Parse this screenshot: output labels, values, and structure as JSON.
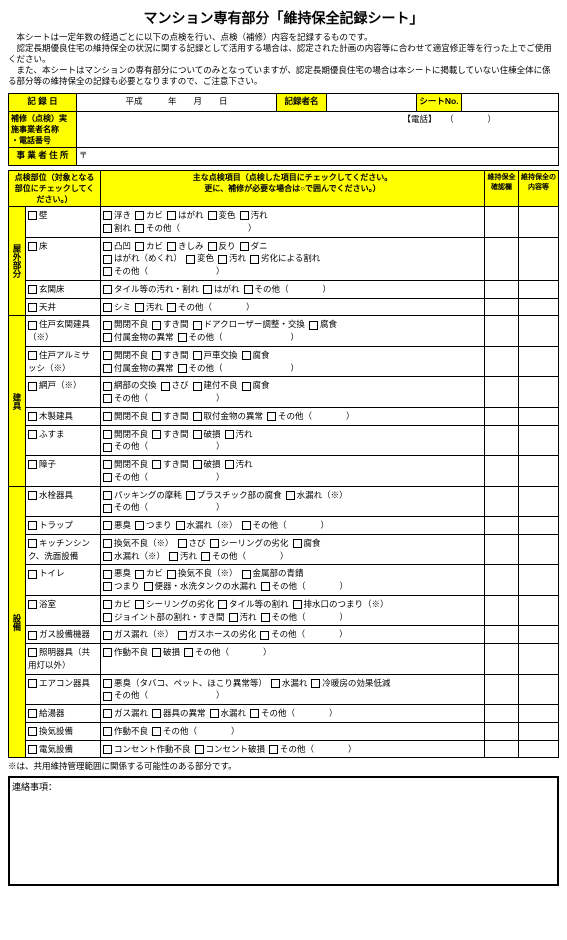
{
  "title": "マンション専有部分「維持保全記録シート」",
  "intro": [
    "　本シートは一定年数の経過ごとに以下の点検を行い、点検（補修）内容を記録するものです。",
    "　認定長期優良住宅の維持保全の状況に関する記録として活用する場合は、認定された計画の内容等に合わせて適宜修正等を行った上でご使用ください。",
    "　また、本シートはマンションの専有部分についてのみとなっていますが、認定長期優良住宅の場合は本シートに掲載していない住棟全体に係る部分等の維持保全の記録も必要となりますので、ご注意下さい。"
  ],
  "header": {
    "record_date": "記 録 日",
    "heisei": "平成",
    "year": "年",
    "month": "月",
    "day": "日",
    "recorder": "記録者名",
    "sheet_no": "シートNo.",
    "contractor": "補修（点検）実施事業者名称\n・電話番号",
    "tel": "【電話】",
    "address": "事 業 者 住 所",
    "postal": "〒"
  },
  "col_headers": {
    "area": "点検部位（対象となる部位にチェックしてください。）",
    "main": "主な点検項目（点検した項目にチェックしてください。\n更に、補修が必要な場合は○で囲んでください。）",
    "maint": "維持保全確認欄",
    "content": "維持保全の内容等"
  },
  "sections": [
    {
      "label": "屋外部分",
      "rows": [
        {
          "area": "壁",
          "lines": [
            [
              "浮き",
              "カビ",
              "はがれ",
              "変色",
              "汚れ"
            ],
            [
              "割れ",
              "その他（　　　　　　　　）"
            ]
          ]
        },
        {
          "area": "床",
          "lines": [
            [
              "凸凹",
              "カビ",
              "きしみ",
              "反り",
              "ダニ"
            ],
            [
              "はがれ（めくれ）",
              "変色",
              "汚れ",
              "劣化による割れ"
            ],
            [
              "その他（　　　　　　　　）"
            ]
          ]
        },
        {
          "area": "玄関床",
          "lines": [
            [
              "タイル等の汚れ・割れ",
              "はがれ",
              "その他（　　　　）"
            ]
          ]
        },
        {
          "area": "天井",
          "lines": [
            [
              "シミ",
              "汚れ",
              "その他（　　　　）"
            ]
          ]
        }
      ]
    },
    {
      "label": "建具",
      "rows": [
        {
          "area": "住戸玄関建具（※）",
          "lines": [
            [
              "開閉不良",
              "すき間",
              "ドアクローザー調整・交換",
              "腐食"
            ],
            [
              "付属金物の異常",
              "その他（　　　　　　　　）"
            ]
          ]
        },
        {
          "area": "住戸アルミサッシ（※）",
          "lines": [
            [
              "開閉不良",
              "すき間",
              "戸車交換",
              "腐食"
            ],
            [
              "付属金物の異常",
              "その他（　　　　　　　　）"
            ]
          ]
        },
        {
          "area": "網戸（※）",
          "lines": [
            [
              "網部の交換",
              "さび",
              "建付不良",
              "腐食"
            ],
            [
              "その他（　　　　　　　　）"
            ]
          ]
        },
        {
          "area": "木製建具",
          "lines": [
            [
              "開閉不良",
              "すき間",
              "取付金物の異常",
              "その他（　　　　）"
            ]
          ]
        },
        {
          "area": "ふすま",
          "lines": [
            [
              "開閉不良",
              "すき間",
              "破損",
              "汚れ"
            ],
            [
              "その他（　　　　　　　　）"
            ]
          ]
        },
        {
          "area": "障子",
          "lines": [
            [
              "開閉不良",
              "すき間",
              "破損",
              "汚れ"
            ],
            [
              "その他（　　　　　　　　）"
            ]
          ]
        }
      ]
    },
    {
      "label": "設備",
      "rows": [
        {
          "area": "水栓器具",
          "lines": [
            [
              "パッキングの摩耗",
              "プラスチック部の腐食",
              "水漏れ（※）"
            ],
            [
              "その他（　　　　　　　　）"
            ]
          ]
        },
        {
          "area": "トラップ",
          "lines": [
            [
              "悪臭",
              "つまり",
              "水漏れ（※）",
              "その他（　　　　）"
            ]
          ]
        },
        {
          "area": "キッチンシンク、洗面設備",
          "lines": [
            [
              "換気不良（※）",
              "さび",
              "シーリングの劣化",
              "腐食"
            ],
            [
              "水漏れ（※）",
              "汚れ",
              "その他（　　　　）"
            ]
          ]
        },
        {
          "area": "トイレ",
          "lines": [
            [
              "悪臭",
              "カビ",
              "換気不良（※）",
              "金属部の青錆"
            ],
            [
              "つまり",
              "便器・水洗タンクの水漏れ",
              "その他（　　　　）"
            ]
          ]
        },
        {
          "area": "浴室",
          "lines": [
            [
              "カビ",
              "シーリングの劣化",
              "タイル等の割れ",
              "排水口のつまり（※）"
            ],
            [
              "ジョイント部の割れ・すき間",
              "汚れ",
              "その他（　　　　）"
            ]
          ]
        },
        {
          "area": "ガス設備機器",
          "lines": [
            [
              "ガス漏れ（※）",
              "ガスホースの劣化",
              "その他（　　　　）"
            ]
          ]
        },
        {
          "area": "照明器具（共用灯以外）",
          "lines": [
            [
              "作動不良",
              "破損",
              "その他（　　　　）"
            ]
          ]
        },
        {
          "area": "エアコン器具",
          "lines": [
            [
              "悪臭（タバコ、ペット、ほこり異常等）",
              "水漏れ",
              "冷暖房の効果低減"
            ],
            [
              "その他（　　　　　　　　）"
            ]
          ]
        },
        {
          "area": "給湯器",
          "lines": [
            [
              "ガス漏れ",
              "器具の異常",
              "水漏れ",
              "その他（　　　　）"
            ]
          ]
        },
        {
          "area": "換気設備",
          "lines": [
            [
              "作動不良",
              "その他（　　　　）"
            ]
          ]
        },
        {
          "area": "電気設備",
          "lines": [
            [
              "コンセント作動不良",
              "コンセント破損",
              "その他（　　　　）"
            ]
          ]
        }
      ]
    }
  ],
  "footnote": "※は、共用維持管理範囲に関係する可能性のある部分です。",
  "contact_label": "連絡事項："
}
